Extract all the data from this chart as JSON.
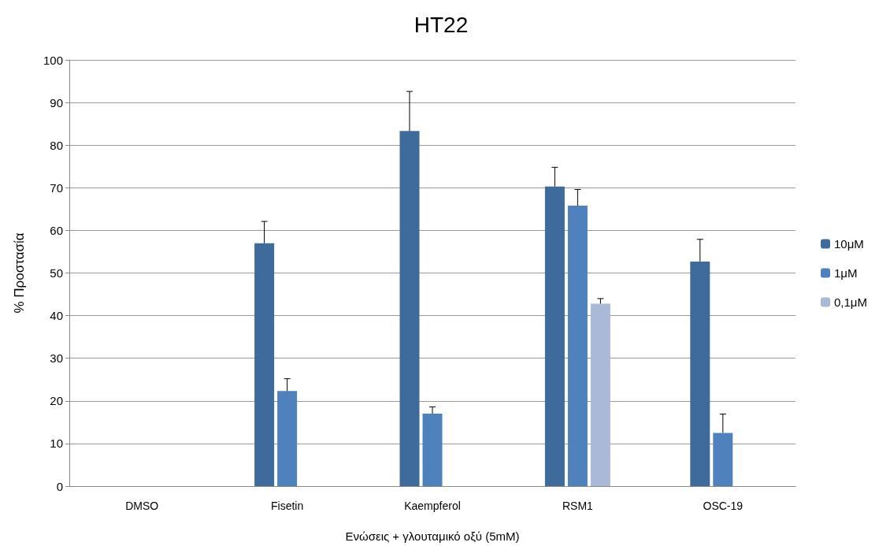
{
  "chart_data": {
    "type": "bar",
    "title": "HT22",
    "xlabel": "Ενώσεις + γλουταμικό οξύ (5mM)",
    "ylabel": "% Προστασία",
    "categories": [
      "DMSO",
      "Fisetin",
      "Kaempferol",
      "RSM1",
      "OSC-19"
    ],
    "series": [
      {
        "name": "10μM",
        "color": "#3f6a9c",
        "values": [
          null,
          57,
          83.3,
          70.3,
          52.7
        ],
        "errors": [
          null,
          [
            57,
            62.1
          ],
          [
            83.3,
            92.6
          ],
          [
            70.3,
            74.8
          ],
          [
            52.7,
            57.9
          ]
        ]
      },
      {
        "name": "1μM",
        "color": "#4f81bd",
        "values": [
          null,
          22.3,
          17.0,
          65.8,
          12.5
        ],
        "errors": [
          null,
          [
            22.3,
            25.2
          ],
          [
            17.0,
            18.6
          ],
          [
            65.8,
            69.6
          ],
          [
            12.5,
            16.9
          ]
        ]
      },
      {
        "name": "0,1μM",
        "color": "#a9b9d7",
        "values": [
          null,
          null,
          null,
          42.8,
          null
        ],
        "errors": [
          null,
          null,
          null,
          [
            42.8,
            44.0
          ],
          null
        ]
      }
    ],
    "ylim": [
      0,
      100
    ],
    "yticks": [
      0,
      10,
      20,
      30,
      40,
      50,
      60,
      70,
      80,
      90,
      100
    ],
    "grid": "y",
    "legend": "right"
  }
}
